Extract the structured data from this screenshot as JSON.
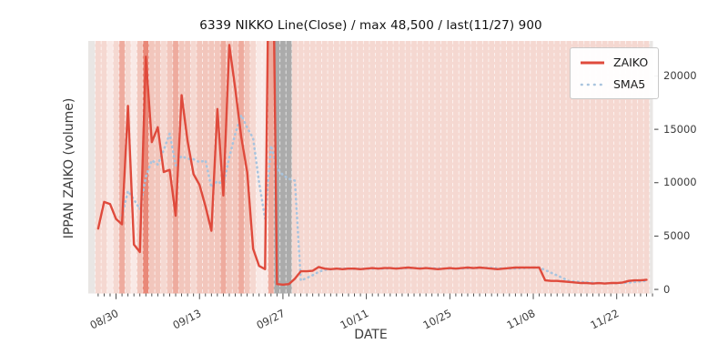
{
  "title": "6339 NIKKO Line(Close) / max 48,500 / last(11/27) 900",
  "axes": {
    "xlabel": "DATE",
    "ylabel": "IPPAN ZAIKO (volume)",
    "x_major_tick_labels": [
      "08/30",
      "09/13",
      "09/27",
      "10/11",
      "10/25",
      "11/08",
      "11/22"
    ],
    "y_tick_labels": [
      "0",
      "5000",
      "10000",
      "15000",
      "20000"
    ]
  },
  "legend": {
    "entries": [
      {
        "label": "ZAIKO",
        "color": "#df4a3c",
        "style": "solid"
      },
      {
        "label": "SMA5",
        "color": "#a9c4de",
        "style": "dotted"
      }
    ],
    "position": "upper right"
  },
  "annotations": {
    "max_note": "max 48,500",
    "last_note": "last(11/27) 900"
  },
  "chart_data": {
    "type": "line",
    "title": "6339 NIKKO Line(Close) / max 48,500 / last(11/27) 900",
    "xlabel": "DATE",
    "ylabel": "IPPAN ZAIKO (volume)",
    "n_days": 93,
    "x_major_ticks": [
      {
        "label": "08/30",
        "day_index": 3
      },
      {
        "label": "09/13",
        "day_index": 17
      },
      {
        "label": "09/27",
        "day_index": 31
      },
      {
        "label": "10/11",
        "day_index": 45
      },
      {
        "label": "10/25",
        "day_index": 59
      },
      {
        "label": "11/08",
        "day_index": 73
      },
      {
        "label": "11/22",
        "day_index": 87
      }
    ],
    "y_ticks": [
      0,
      5000,
      10000,
      15000,
      20000
    ],
    "ylim": [
      -380,
      23280
    ],
    "grid": false,
    "series": [
      {
        "name": "ZAIKO",
        "color": "#df4a3c",
        "style": "solid",
        "values": [
          5700,
          8200,
          8000,
          6600,
          6100,
          17200,
          4200,
          3500,
          21800,
          13800,
          15200,
          11000,
          11200,
          6900,
          18200,
          13900,
          10800,
          9800,
          7800,
          5500,
          16900,
          8800,
          22900,
          18800,
          14300,
          11000,
          3800,
          2200,
          1900,
          48500,
          500,
          450,
          500,
          1000,
          1700,
          1700,
          1750,
          2100,
          1950,
          1900,
          1950,
          1900,
          1950,
          1950,
          1900,
          1950,
          2000,
          1950,
          2000,
          2000,
          1950,
          2000,
          2050,
          2000,
          1950,
          2000,
          1950,
          1900,
          1950,
          2000,
          1950,
          2000,
          2050,
          2000,
          2050,
          2000,
          1950,
          1900,
          1950,
          2000,
          2050,
          2050,
          2050,
          2050,
          2050,
          850,
          800,
          800,
          750,
          700,
          650,
          600,
          600,
          550,
          600,
          550,
          600,
          600,
          650,
          800,
          850,
          850,
          900
        ]
      },
      {
        "name": "SMA5",
        "color": "#a9c4de",
        "style": "dotted",
        "derived": "5-day trailing mean of ZAIKO"
      }
    ],
    "background_day_bands": {
      "palette": {
        "0": "#f9e9e6",
        "1": "#f5d8d1",
        "2": "#f2c6bc",
        "3": "#eeab9e",
        "4": "#e98878",
        "g": "#ababab"
      },
      "edge_strip_color": "#e9e6e4",
      "separator_color": "rgba(255,255,255,0.72)",
      "codes": "110131024221232212222322321003ggg111111111111111111111111111111111111111111111111111111111111"
    }
  }
}
